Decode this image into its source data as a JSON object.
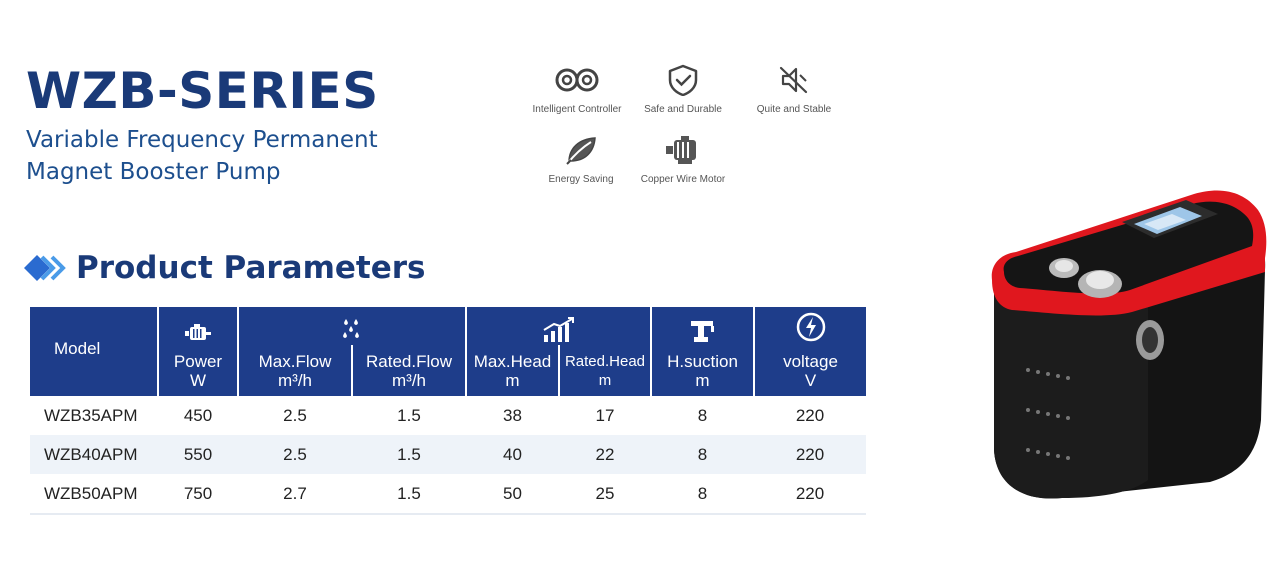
{
  "header": {
    "title": "WZB-SERIES",
    "subtitle_line1": "Variable Frequency Permanent",
    "subtitle_line2": "Magnet Booster Pump"
  },
  "features": [
    {
      "label": "Intelligent Controller",
      "icon": "controller-icon"
    },
    {
      "label": "Safe and Durable",
      "icon": "shield-check-icon"
    },
    {
      "label": "Quite and Stable",
      "icon": "mute-icon"
    },
    {
      "label": "Energy Saving",
      "icon": "leaf-icon"
    },
    {
      "label": "Copper Wire Motor",
      "icon": "motor-icon"
    }
  ],
  "section": {
    "title": "Product Parameters"
  },
  "table": {
    "headers": {
      "model": "Model",
      "power": "Power",
      "power_unit": "W",
      "max_flow": "Max.Flow",
      "rated_flow": "Rated.Flow",
      "flow_unit": "m³/h",
      "max_head": "Max.Head",
      "rated_head": "Rated.Head",
      "head_unit": "m",
      "suction": "H.suction",
      "suction_unit": "m",
      "voltage": "voltage",
      "voltage_unit": "V"
    },
    "rows": [
      {
        "model": "WZB35APM",
        "power": "450",
        "max_flow": "2.5",
        "rated_flow": "1.5",
        "max_head": "38",
        "rated_head": "17",
        "suction": "8",
        "voltage": "220"
      },
      {
        "model": "WZB40APM",
        "power": "550",
        "max_flow": "2.5",
        "rated_flow": "1.5",
        "max_head": "40",
        "rated_head": "22",
        "suction": "8",
        "voltage": "220"
      },
      {
        "model": "WZB50APM",
        "power": "750",
        "max_flow": "2.7",
        "rated_flow": "1.5",
        "max_head": "50",
        "rated_head": "25",
        "suction": "8",
        "voltage": "220"
      }
    ]
  },
  "colors": {
    "title_navy": "#1a3a78",
    "header_blue": "#1e3d8a",
    "pump_red": "#e0171e",
    "pump_black": "#141414"
  }
}
